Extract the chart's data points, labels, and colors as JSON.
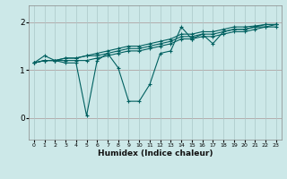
{
  "xlabel": "Humidex (Indice chaleur)",
  "bg_color": "#cce8e8",
  "grid_color": "#aac8c8",
  "line_color": "#006060",
  "xlim": [
    -0.5,
    23.5
  ],
  "ylim": [
    -0.45,
    2.35
  ],
  "yticks": [
    0,
    1,
    2
  ],
  "xticks": [
    0,
    1,
    2,
    3,
    4,
    5,
    6,
    7,
    8,
    9,
    10,
    11,
    12,
    13,
    14,
    15,
    16,
    17,
    18,
    19,
    20,
    21,
    22,
    23
  ],
  "series": [
    [
      1.15,
      1.3,
      1.2,
      1.15,
      1.15,
      0.05,
      1.2,
      1.35,
      1.05,
      0.35,
      0.35,
      0.7,
      1.35,
      1.4,
      1.9,
      1.65,
      1.75,
      1.55,
      1.8,
      1.85,
      1.85,
      1.9,
      1.95,
      1.95
    ],
    [
      1.15,
      1.2,
      1.2,
      1.2,
      1.2,
      1.2,
      1.25,
      1.3,
      1.35,
      1.4,
      1.4,
      1.45,
      1.5,
      1.55,
      1.65,
      1.65,
      1.7,
      1.7,
      1.75,
      1.8,
      1.8,
      1.85,
      1.9,
      1.9
    ],
    [
      1.15,
      1.2,
      1.2,
      1.25,
      1.25,
      1.3,
      1.3,
      1.35,
      1.4,
      1.45,
      1.45,
      1.5,
      1.55,
      1.6,
      1.7,
      1.7,
      1.75,
      1.75,
      1.8,
      1.85,
      1.85,
      1.9,
      1.9,
      1.95
    ],
    [
      1.15,
      1.2,
      1.2,
      1.25,
      1.25,
      1.3,
      1.35,
      1.4,
      1.45,
      1.5,
      1.5,
      1.55,
      1.6,
      1.65,
      1.75,
      1.75,
      1.8,
      1.8,
      1.85,
      1.9,
      1.9,
      1.92,
      1.95,
      1.95
    ]
  ]
}
